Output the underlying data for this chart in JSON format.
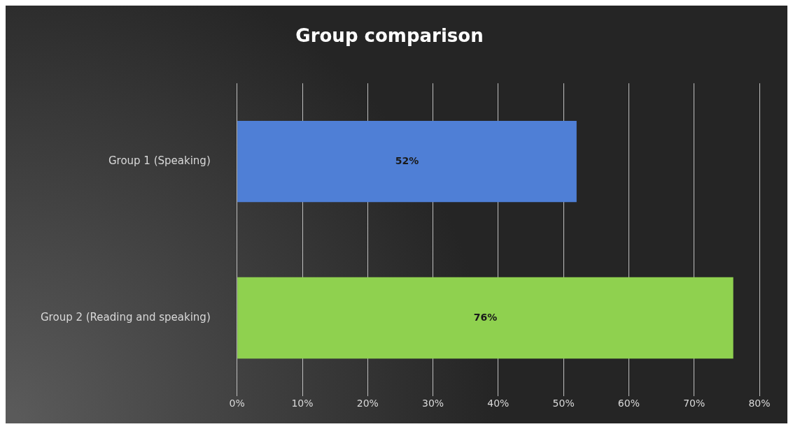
{
  "chart_data": {
    "type": "bar",
    "orientation": "horizontal",
    "title": "Group comparison",
    "categories": [
      "Group 1 (Speaking)",
      "Group 2 (Reading and speaking)"
    ],
    "values": [
      52,
      76
    ],
    "colors": [
      "#4f7fd6",
      "#8fd14f"
    ],
    "value_labels": [
      "52%",
      "76%"
    ],
    "xlim": [
      0,
      80
    ],
    "xticks": [
      {
        "value": 0,
        "label": "0%"
      },
      {
        "value": 10,
        "label": "10%"
      },
      {
        "value": 20,
        "label": "20%"
      },
      {
        "value": 30,
        "label": "30%"
      },
      {
        "value": 40,
        "label": "40%"
      },
      {
        "value": 50,
        "label": "50%"
      },
      {
        "value": 60,
        "label": "60%"
      },
      {
        "value": 70,
        "label": "70%"
      },
      {
        "value": 80,
        "label": "80%"
      }
    ],
    "grid": "x",
    "legend": false
  }
}
